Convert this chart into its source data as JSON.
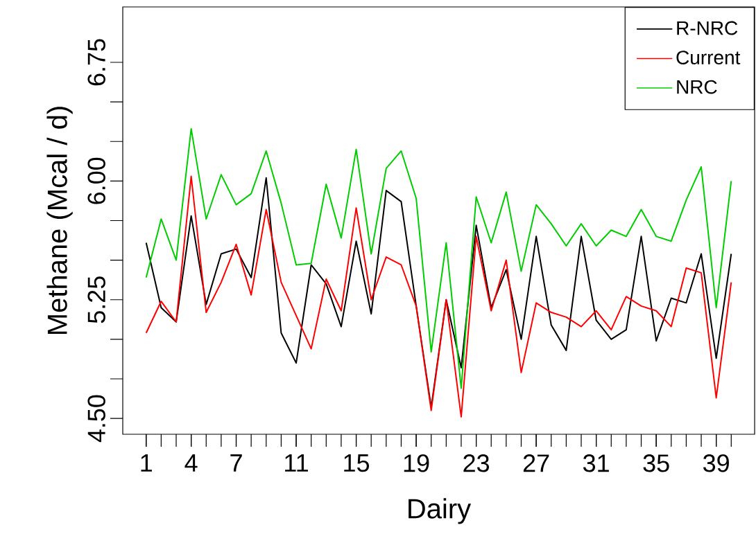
{
  "chart_data": {
    "type": "line",
    "xlabel": "Dairy",
    "ylabel": "Methane (Mcal / d)",
    "x": [
      1,
      2,
      3,
      4,
      5,
      6,
      7,
      8,
      9,
      10,
      11,
      12,
      13,
      14,
      15,
      16,
      17,
      18,
      19,
      20,
      21,
      22,
      23,
      24,
      25,
      26,
      27,
      28,
      29,
      30,
      31,
      32,
      33,
      34,
      35,
      36,
      37,
      38,
      39,
      40
    ],
    "series": [
      {
        "name": "R-NRC",
        "color": "#000000",
        "values": [
          5.61,
          5.2,
          5.11,
          5.78,
          5.22,
          5.54,
          5.57,
          5.39,
          6.02,
          5.04,
          4.85,
          5.47,
          5.35,
          5.08,
          5.62,
          5.16,
          5.94,
          5.87,
          5.21,
          4.57,
          5.25,
          4.82,
          5.72,
          5.2,
          5.44,
          5.0,
          5.65,
          5.09,
          4.93,
          5.65,
          5.12,
          5.0,
          5.06,
          5.65,
          4.99,
          5.26,
          5.23,
          5.54,
          4.88,
          5.54
        ]
      },
      {
        "name": "Current",
        "color": "#ff0000",
        "values": [
          5.04,
          5.24,
          5.11,
          6.03,
          5.17,
          5.36,
          5.6,
          5.28,
          5.82,
          5.36,
          5.15,
          4.94,
          5.38,
          5.18,
          5.83,
          5.25,
          5.52,
          5.47,
          5.21,
          4.55,
          5.25,
          4.51,
          5.65,
          5.18,
          5.5,
          4.79,
          5.23,
          5.17,
          5.14,
          5.08,
          5.18,
          5.06,
          5.27,
          5.21,
          5.18,
          5.08,
          5.45,
          5.42,
          4.63,
          5.36
        ]
      },
      {
        "name": "NRC",
        "color": "#00cd00",
        "values": [
          5.39,
          5.76,
          5.5,
          6.33,
          5.76,
          6.04,
          5.85,
          5.92,
          6.19,
          5.86,
          5.47,
          5.48,
          5.98,
          5.64,
          6.2,
          5.54,
          6.08,
          6.19,
          5.89,
          4.92,
          5.61,
          4.69,
          5.9,
          5.61,
          5.93,
          5.43,
          5.85,
          5.73,
          5.59,
          5.73,
          5.59,
          5.69,
          5.65,
          5.82,
          5.65,
          5.62,
          5.88,
          6.09,
          5.2,
          6.0
        ]
      }
    ],
    "xlim": [
      -0.56,
      41.56
    ],
    "ylim": [
      4.4,
      7.1
    ],
    "xticks": [
      1,
      4,
      7,
      11,
      15,
      19,
      23,
      27,
      31,
      35,
      39
    ],
    "yticks": [
      {
        "value": 4.5,
        "label": "4.50"
      },
      {
        "value": 5.25,
        "label": "5.25"
      },
      {
        "value": 6.0,
        "label": "6.00"
      },
      {
        "value": 6.75,
        "label": "6.75"
      }
    ],
    "grid": false,
    "legend": "top right",
    "marker": "none",
    "line_style": "solid"
  }
}
